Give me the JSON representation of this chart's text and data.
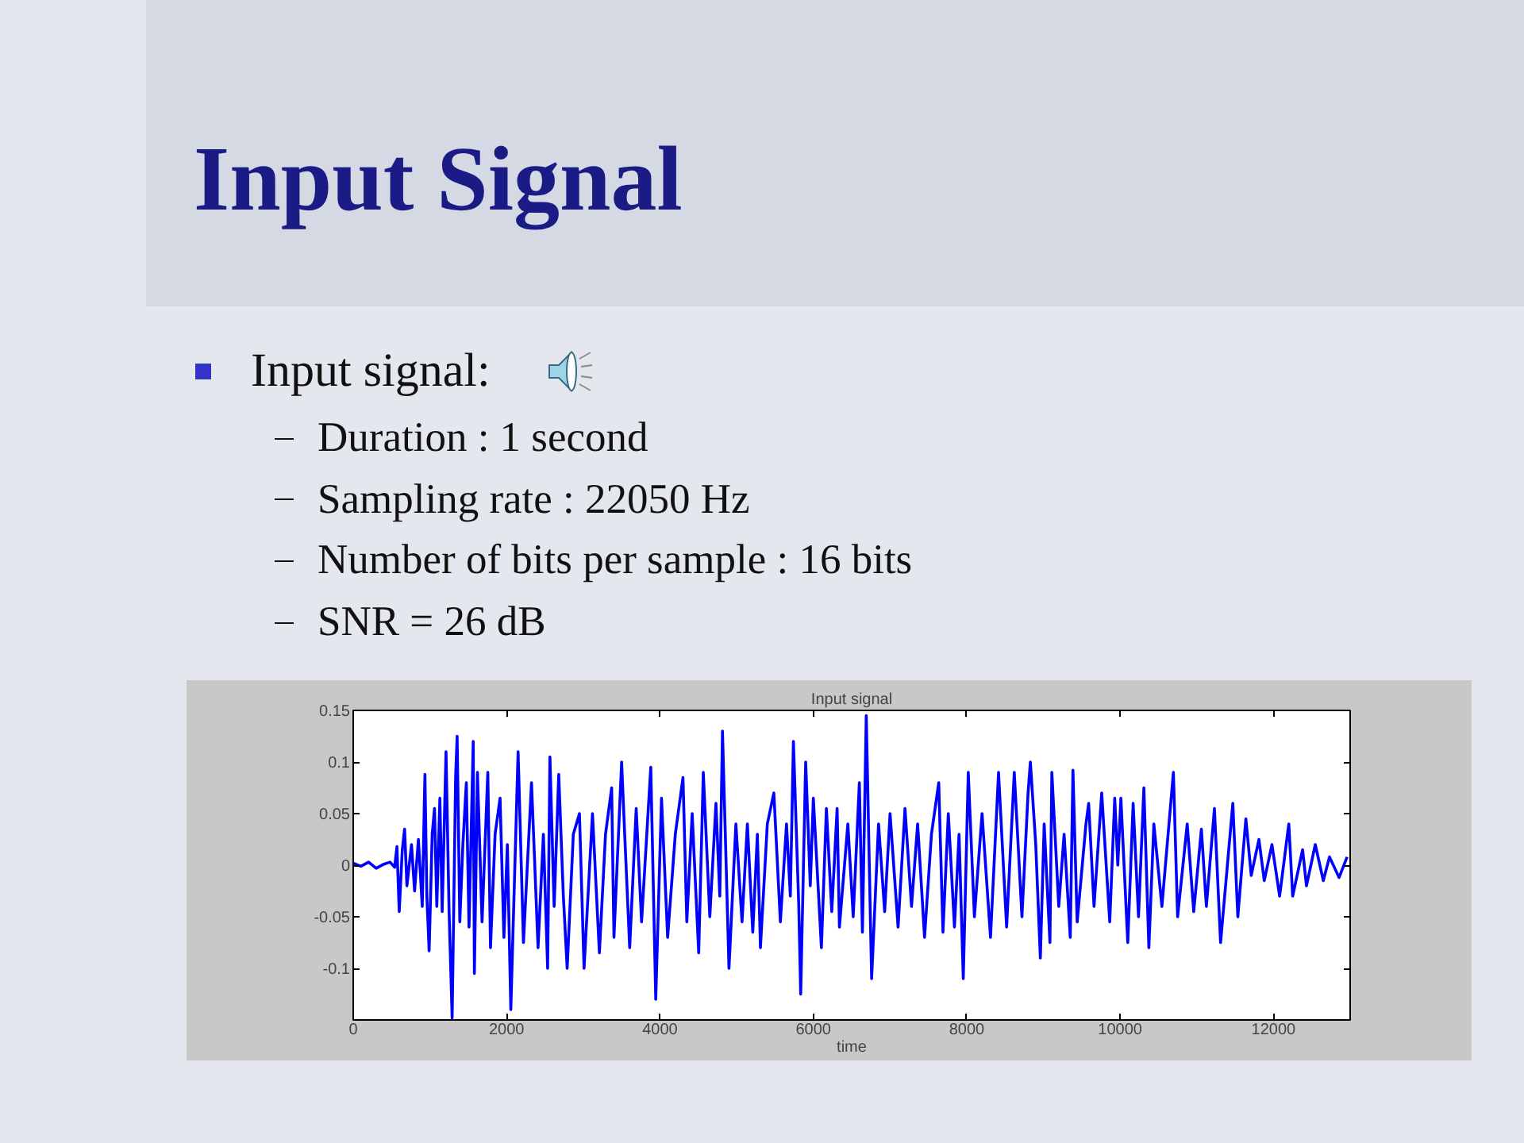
{
  "chart_data": {
    "type": "line",
    "title": "Input signal",
    "xlabel": "time",
    "annotations": [
      "Input Signal",
      "Input signal:",
      "Duration : 1 second",
      "Sampling rate : 22050 Hz",
      "Number of bits per sample : 16 bits",
      "SNR = 26 dB"
    ],
    "color": "#0000ff",
    "xlim": [
      0,
      13000
    ],
    "ylim": [
      -0.15,
      0.15
    ],
    "xticks": [
      0,
      2000,
      4000,
      6000,
      8000,
      10000,
      12000
    ],
    "yticks": [
      -0.1,
      -0.05,
      0,
      0.05,
      0.1,
      0.15
    ],
    "x": [
      0,
      100,
      200,
      300,
      400,
      480,
      540,
      570,
      600,
      640,
      670,
      700,
      760,
      800,
      850,
      900,
      935,
      960,
      990,
      1030,
      1060,
      1090,
      1130,
      1160,
      1210,
      1250,
      1290,
      1335,
      1355,
      1390,
      1430,
      1475,
      1510,
      1565,
      1580,
      1620,
      1680,
      1755,
      1790,
      1850,
      1915,
      1965,
      2010,
      2055,
      2150,
      2220,
      2325,
      2410,
      2480,
      2535,
      2565,
      2620,
      2680,
      2740,
      2790,
      2870,
      2950,
      3010,
      3120,
      3210,
      3290,
      3370,
      3400,
      3500,
      3540,
      3605,
      3690,
      3760,
      3880,
      3945,
      4020,
      4100,
      4200,
      4300,
      4350,
      4420,
      4505,
      4565,
      4650,
      4730,
      4780,
      4815,
      4900,
      4990,
      5070,
      5140,
      5210,
      5270,
      5310,
      5400,
      5485,
      5570,
      5650,
      5700,
      5740,
      5810,
      5835,
      5900,
      5960,
      6000,
      6105,
      6170,
      6240,
      6310,
      6340,
      6450,
      6520,
      6600,
      6640,
      6690,
      6760,
      6850,
      6930,
      7000,
      7105,
      7195,
      7280,
      7360,
      7450,
      7540,
      7635,
      7690,
      7760,
      7840,
      7900,
      7955,
      8020,
      8100,
      8200,
      8310,
      8415,
      8520,
      8620,
      8720,
      8800,
      8830,
      8900,
      8960,
      9010,
      9085,
      9110,
      9200,
      9270,
      9350,
      9385,
      9440,
      9555,
      9590,
      9660,
      9760,
      9865,
      9930,
      9970,
      10010,
      10100,
      10170,
      10240,
      10310,
      10375,
      10440,
      10545,
      10695,
      10750,
      10875,
      10960,
      11060,
      11125,
      11230,
      11310,
      11470,
      11535,
      11640,
      11710,
      11810,
      11880,
      11980,
      12080,
      12200,
      12250,
      12380,
      12430,
      12545,
      12650,
      12730,
      12855,
      12960
    ],
    "values": [
      0.002,
      -0.001,
      0.003,
      -0.003,
      0.001,
      0.003,
      -0.002,
      0.018,
      -0.045,
      0.015,
      0.035,
      -0.02,
      0.02,
      -0.025,
      0.025,
      -0.04,
      0.088,
      -0.03,
      -0.083,
      0.03,
      0.055,
      -0.04,
      0.065,
      -0.045,
      0.11,
      -0.045,
      -0.148,
      0.085,
      0.125,
      -0.055,
      0.02,
      0.08,
      -0.06,
      0.12,
      -0.105,
      0.09,
      -0.055,
      0.09,
      -0.08,
      0.03,
      0.065,
      -0.07,
      0.02,
      -0.14,
      0.11,
      -0.075,
      0.08,
      -0.08,
      0.03,
      -0.1,
      0.105,
      -0.04,
      0.088,
      -0.03,
      -0.1,
      0.03,
      0.05,
      -0.1,
      0.05,
      -0.085,
      0.03,
      0.075,
      -0.07,
      0.1,
      0.03,
      -0.08,
      0.055,
      -0.055,
      0.095,
      -0.13,
      0.065,
      -0.07,
      0.03,
      0.085,
      -0.055,
      0.05,
      -0.085,
      0.09,
      -0.05,
      0.06,
      -0.03,
      0.13,
      -0.1,
      0.04,
      -0.055,
      0.04,
      -0.065,
      0.03,
      -0.08,
      0.04,
      0.07,
      -0.055,
      0.04,
      -0.03,
      0.12,
      -0.04,
      -0.125,
      0.1,
      -0.02,
      0.065,
      -0.08,
      0.055,
      -0.045,
      0.055,
      -0.06,
      0.04,
      -0.05,
      0.08,
      -0.065,
      0.145,
      -0.11,
      0.04,
      -0.045,
      0.05,
      -0.06,
      0.055,
      -0.04,
      0.04,
      -0.07,
      0.03,
      0.08,
      -0.065,
      0.05,
      -0.06,
      0.03,
      -0.11,
      0.09,
      -0.05,
      0.05,
      -0.07,
      0.09,
      -0.06,
      0.09,
      -0.05,
      0.07,
      0.1,
      0.02,
      -0.09,
      0.04,
      -0.075,
      0.09,
      -0.04,
      0.03,
      -0.07,
      0.092,
      -0.055,
      0.04,
      0.06,
      -0.04,
      0.07,
      -0.055,
      0.065,
      0.0,
      0.065,
      -0.075,
      0.06,
      -0.05,
      0.075,
      -0.08,
      0.04,
      -0.04,
      0.09,
      -0.05,
      0.04,
      -0.045,
      0.035,
      -0.04,
      0.055,
      -0.075,
      0.06,
      -0.05,
      0.045,
      -0.01,
      0.025,
      -0.015,
      0.02,
      -0.03,
      0.04,
      -0.03,
      0.015,
      -0.02,
      0.02,
      -0.015,
      0.008,
      -0.012,
      0.008
    ]
  }
}
